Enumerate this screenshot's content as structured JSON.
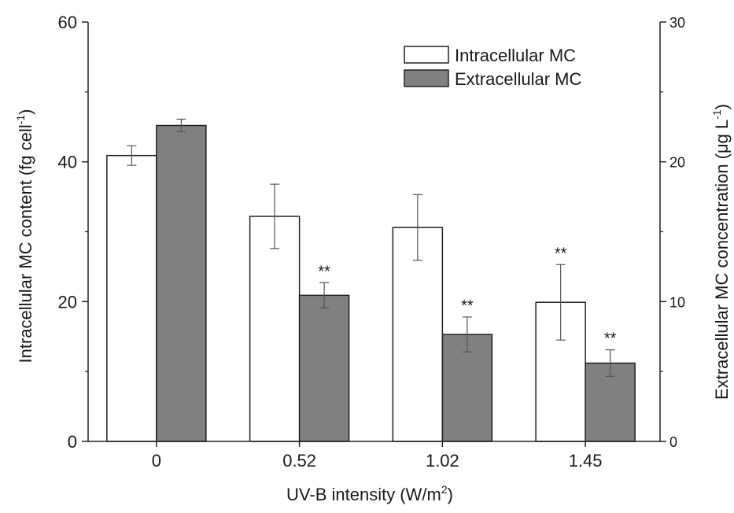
{
  "chart_data": {
    "type": "bar",
    "categories": [
      "0",
      "0.52",
      "1.02",
      "1.45"
    ],
    "xlabel_main": "UV-B intensity (W/m",
    "xlabel_sup": "2",
    "xlabel_end": ")",
    "ylabel_left_main": "Intracellular MC content (fg cell",
    "ylabel_left_sup": "-1",
    "ylabel_left_end": ")",
    "ylabel_right_main": "Extracellular MC concentration (μg L",
    "ylabel_right_sup": "-1",
    "ylabel_right_end": ")",
    "ylim_left": [
      0,
      60
    ],
    "ylim_right": [
      0,
      30
    ],
    "yticks_left": [
      0,
      20,
      40,
      60
    ],
    "yticks_right": [
      0,
      10,
      20,
      30
    ],
    "legend_position": "top-right",
    "series": [
      {
        "name": "Intracellular MC",
        "axis": "left",
        "color": "#ffffff",
        "values": [
          40.9,
          32.2,
          30.6,
          19.9
        ],
        "errors": [
          1.4,
          4.6,
          4.7,
          5.4
        ],
        "annotations": [
          "",
          "",
          "",
          "**"
        ]
      },
      {
        "name": "Extracellular MC",
        "axis": "right",
        "color": "#808080",
        "values": [
          22.6,
          10.45,
          7.65,
          5.6
        ],
        "errors": [
          0.45,
          0.9,
          1.25,
          0.95
        ],
        "annotations": [
          "",
          "**",
          "**",
          "**"
        ]
      }
    ]
  }
}
